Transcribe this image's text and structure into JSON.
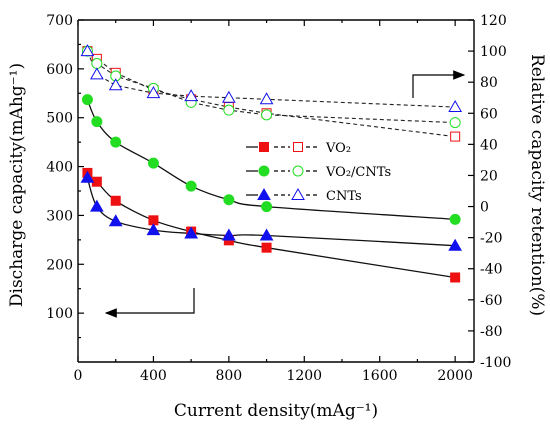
{
  "chart_data": {
    "type": "line",
    "xlabel": "Current density(mAg⁻¹)",
    "ylabel_left": "Discharge capacity(mAhg⁻¹)",
    "ylabel_right": "Relative capacity retention(%)",
    "xlim": [
      0,
      2100
    ],
    "ylim_left": [
      0,
      700
    ],
    "ylim_right": [
      -100,
      120
    ],
    "x_ticks": [
      0,
      400,
      800,
      1200,
      1600,
      2000
    ],
    "y_left_ticks": [
      100,
      200,
      300,
      400,
      500,
      600,
      700
    ],
    "y_right_ticks": [
      -100,
      -80,
      -60,
      -40,
      -20,
      0,
      20,
      40,
      60,
      80,
      100,
      120
    ],
    "grid": false,
    "legend_position": "center-right",
    "legend": [
      {
        "label": "VO₂",
        "series": "VO2"
      },
      {
        "label": "VO₂/CNTs",
        "series": "VO2/CNTs"
      },
      {
        "label": "CNTs",
        "series": "CNTs"
      }
    ],
    "capacity_series": [
      {
        "name": "VO2",
        "marker": "square",
        "color": "#ee1111",
        "x": [
          50,
          100,
          200,
          400,
          600,
          800,
          1000,
          2000
        ],
        "y": [
          387,
          369,
          330,
          290,
          267,
          249,
          234,
          173
        ]
      },
      {
        "name": "VO2/CNTs",
        "marker": "circle",
        "color": "#22dd22",
        "x": [
          50,
          100,
          200,
          400,
          600,
          800,
          1000,
          2000
        ],
        "y": [
          537,
          492,
          450,
          407,
          360,
          332,
          318,
          292
        ]
      },
      {
        "name": "CNTs",
        "marker": "triangle",
        "color": "#1111ee",
        "x": [
          50,
          100,
          200,
          400,
          600,
          800,
          1000,
          2000
        ],
        "y": [
          377,
          318,
          288,
          270,
          263,
          259,
          259,
          238
        ]
      }
    ],
    "retention_series": [
      {
        "name": "VO2",
        "marker": "square-open",
        "color": "#ee1111",
        "x": [
          50,
          100,
          200,
          400,
          600,
          800,
          1000,
          2000
        ],
        "y": [
          100,
          95,
          86,
          75,
          69,
          64,
          60,
          45
        ]
      },
      {
        "name": "VO2/CNTs",
        "marker": "circle-open",
        "color": "#22dd22",
        "x": [
          50,
          100,
          200,
          400,
          600,
          800,
          1000,
          2000
        ],
        "y": [
          100,
          92,
          84,
          76,
          67,
          62,
          59,
          54
        ]
      },
      {
        "name": "CNTs",
        "marker": "triangle-open",
        "color": "#1111ee",
        "x": [
          50,
          100,
          200,
          400,
          600,
          800,
          1000,
          2000
        ],
        "y": [
          100,
          85,
          78,
          73,
          71,
          70,
          69,
          64
        ]
      }
    ]
  }
}
